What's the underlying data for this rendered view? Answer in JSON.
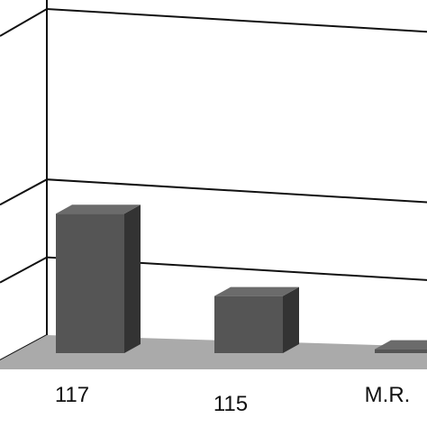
{
  "chart_data": {
    "type": "bar",
    "categories": [
      "117",
      "115",
      "M.R."
    ],
    "values": [
      215,
      88,
      6
    ],
    "ylim": [
      0,
      330
    ],
    "grid": true,
    "title": "",
    "xlabel": "",
    "ylabel": ""
  },
  "colors": {
    "bar_front": "#555555",
    "bar_side": "#333333",
    "bar_top": "#6b6b6b",
    "floor": "#aaaaaa",
    "grid": "#111111"
  }
}
